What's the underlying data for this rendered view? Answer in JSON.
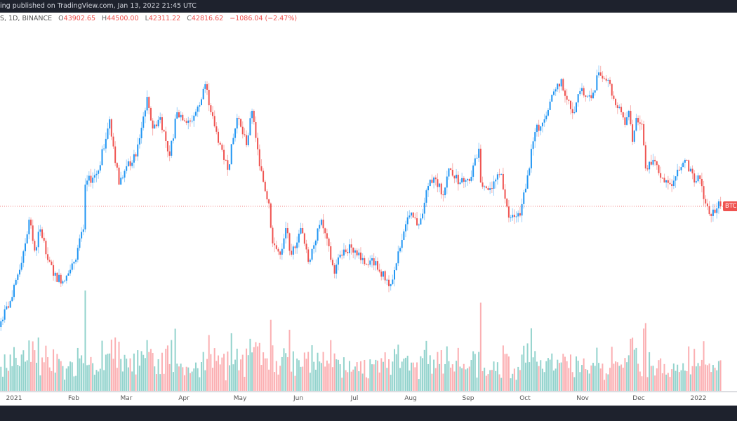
{
  "header": {
    "published": "ing published on TradingView.com, Jan 13, 2022 21:45 UTC"
  },
  "legend": {
    "symbol": "S, 1D, BINANCE",
    "open_label": "O",
    "open": "43902.65",
    "high_label": "H",
    "high": "44500.00",
    "low_label": "L",
    "low": "42311.22",
    "close_label": "C",
    "close": "42816.62",
    "change": "−1086.04 (−2.47%)"
  },
  "price_tag": "BTC",
  "colors": {
    "up": "#2196f3",
    "down": "#ef5350",
    "volume_up": "#80cbc4",
    "volume_down": "#faa1a4",
    "dark_bar": "#1e222d"
  },
  "chart_data": {
    "type": "candlestick",
    "interval": "1D",
    "scale": "log",
    "last_price_line": 42816.62,
    "x_tick_labels": [
      "2021",
      "Feb",
      "Mar",
      "Apr",
      "May",
      "Jun",
      "Jul",
      "Aug",
      "Sep",
      "Oct",
      "Nov",
      "Dec",
      "2022"
    ],
    "grid": false,
    "volume_pane": true,
    "closes": [
      [
        "2020-12-25",
        28600
      ],
      [
        "2020-12-31",
        31150
      ],
      [
        "2021-01-07",
        37590
      ],
      [
        "2021-01-09",
        40850
      ],
      [
        "2021-01-12",
        36660
      ],
      [
        "2021-01-15",
        39480
      ],
      [
        "2021-01-22",
        33560
      ],
      [
        "2021-01-28",
        32980
      ],
      [
        "2021-02-02",
        35230
      ],
      [
        "2021-02-07",
        39480
      ],
      [
        "2021-02-08",
        46200
      ],
      [
        "2021-02-15",
        48540
      ],
      [
        "2021-02-20",
        56260
      ],
      [
        "2021-02-21",
        58100
      ],
      [
        "2021-02-26",
        46200
      ],
      [
        "2021-03-02",
        49280
      ],
      [
        "2021-03-07",
        51000
      ],
      [
        "2021-03-13",
        62860
      ],
      [
        "2021-03-16",
        56260
      ],
      [
        "2021-03-20",
        58530
      ],
      [
        "2021-03-25",
        51130
      ],
      [
        "2021-03-29",
        59560
      ],
      [
        "2021-04-05",
        57670
      ],
      [
        "2021-04-10",
        61050
      ],
      [
        "2021-04-13",
        65720
      ],
      [
        "2021-04-18",
        56690
      ],
      [
        "2021-04-25",
        48680
      ],
      [
        "2021-04-30",
        58400
      ],
      [
        "2021-05-05",
        53050
      ],
      [
        "2021-05-08",
        59860
      ],
      [
        "2021-05-12",
        49280
      ],
      [
        "2021-05-17",
        43240
      ],
      [
        "2021-05-19",
        37590
      ],
      [
        "2021-05-23",
        36130
      ],
      [
        "2021-05-26",
        39670
      ],
      [
        "2021-05-29",
        36130
      ],
      [
        "2021-06-03",
        39670
      ],
      [
        "2021-06-07",
        35230
      ],
      [
        "2021-06-14",
        40850
      ],
      [
        "2021-06-21",
        33800
      ],
      [
        "2021-06-24",
        36130
      ],
      [
        "2021-06-30",
        37040
      ],
      [
        "2021-07-04",
        36400
      ],
      [
        "2021-07-08",
        34900
      ],
      [
        "2021-07-11",
        35680
      ],
      [
        "2021-07-15",
        34050
      ],
      [
        "2021-07-21",
        32580
      ],
      [
        "2021-07-23",
        34220
      ],
      [
        "2021-07-27",
        38040
      ],
      [
        "2021-07-31",
        41450
      ],
      [
        "2021-08-05",
        40160
      ],
      [
        "2021-08-10",
        45980
      ],
      [
        "2021-08-13",
        47360
      ],
      [
        "2021-08-18",
        44530
      ],
      [
        "2021-08-21",
        48900
      ],
      [
        "2021-08-27",
        46550
      ],
      [
        "2021-09-01",
        46800
      ],
      [
        "2021-09-06",
        52410
      ],
      [
        "2021-09-07",
        46550
      ],
      [
        "2021-09-12",
        45640
      ],
      [
        "2021-09-18",
        47960
      ],
      [
        "2021-09-22",
        41150
      ],
      [
        "2021-09-28",
        41450
      ],
      [
        "2021-10-02",
        47730
      ],
      [
        "2021-10-06",
        55580
      ],
      [
        "2021-10-11",
        58100
      ],
      [
        "2021-10-15",
        63330
      ],
      [
        "2021-10-20",
        66900
      ],
      [
        "2021-10-23",
        62260
      ],
      [
        "2021-10-27",
        59560
      ],
      [
        "2021-10-30",
        64140
      ],
      [
        "2021-11-05",
        62560
      ],
      [
        "2021-11-09",
        68500
      ],
      [
        "2021-11-12",
        67010
      ],
      [
        "2021-11-14",
        66720
      ],
      [
        "2021-11-18",
        61050
      ],
      [
        "2021-11-21",
        59560
      ],
      [
        "2021-11-23",
        56990
      ],
      [
        "2021-11-25",
        59860
      ],
      [
        "2021-11-27",
        53700
      ],
      [
        "2021-11-29",
        58400
      ],
      [
        "2021-12-02",
        57120
      ],
      [
        "2021-12-04",
        48900
      ],
      [
        "2021-12-09",
        50140
      ],
      [
        "2021-12-14",
        46550
      ],
      [
        "2021-12-18",
        45980
      ],
      [
        "2021-12-21",
        48680
      ],
      [
        "2021-12-25",
        50380
      ],
      [
        "2021-12-30",
        46550
      ],
      [
        "2022-01-02",
        47140
      ],
      [
        "2022-01-05",
        43240
      ],
      [
        "2022-01-07",
        41660
      ],
      [
        "2022-01-11",
        42500
      ],
      [
        "2022-01-12",
        43560
      ],
      [
        "2022-01-13",
        42816.62
      ]
    ]
  }
}
